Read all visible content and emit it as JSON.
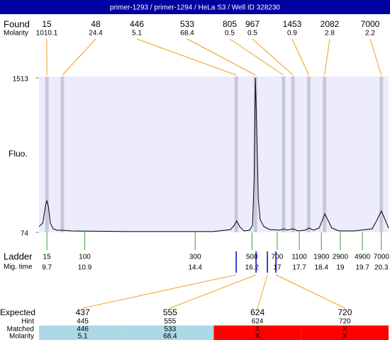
{
  "chart_data": {
    "type": "line",
    "title": "primer-1293 / primer-1294 / HeLa S3 / Well ID 328230",
    "ylabel": "Fluo.",
    "x": [
      9.45,
      9.57,
      9.66,
      9.7,
      9.75,
      9.81,
      9.9,
      10.01,
      10.19,
      10.46,
      12.26,
      14.96,
      15.52,
      15.64,
      15.72,
      15.81,
      15.95,
      16.13,
      16.22,
      16.27,
      16.31,
      16.36,
      16.4,
      16.46,
      16.58,
      16.76,
      17.09,
      17.21,
      17.31,
      17.5,
      17.66,
      17.88,
      18.01,
      18.15,
      18.33,
      18.44,
      18.51,
      18.6,
      18.73,
      18.96,
      19.45,
      20.01,
      20.17,
      20.3,
      20.42,
      20.53
    ],
    "values": [
      127,
      160,
      325,
      371,
      312,
      160,
      107,
      94,
      94,
      87,
      81,
      81,
      100,
      140,
      180,
      127,
      87,
      94,
      140,
      589,
      1513,
      919,
      391,
      193,
      127,
      100,
      94,
      107,
      94,
      107,
      87,
      94,
      114,
      94,
      114,
      193,
      246,
      193,
      114,
      87,
      87,
      107,
      193,
      272,
      193,
      114
    ],
    "color": "#000000",
    "xlim": [
      9.45,
      20.53
    ],
    "ylim": [
      74,
      1513
    ],
    "yticks": [
      74,
      1513
    ],
    "found": {
      "label": "Found",
      "sublabel": "Molarity",
      "peaks": [
        {
          "size": 15,
          "molarity": 1010.1,
          "time": 9.7
        },
        {
          "size": 48,
          "molarity": 24.4,
          "time": 10.19
        },
        {
          "size": 446,
          "molarity": 5.1,
          "time": 15.7
        },
        {
          "size": 533,
          "molarity": 68.4,
          "time": 16.31
        },
        {
          "size": 805,
          "molarity": 0.5,
          "time": 17.2
        },
        {
          "size": 967,
          "molarity": 0.5,
          "time": 17.5
        },
        {
          "size": 1453,
          "molarity": 0.9,
          "time": 18.0
        },
        {
          "size": 2082,
          "molarity": 2.8,
          "time": 18.5
        },
        {
          "size": 7000,
          "molarity": 2.2,
          "time": 20.3
        }
      ]
    },
    "ladder": {
      "label": "Ladder",
      "sublabel": "Mig. time",
      "sizes": [
        15,
        100,
        300,
        500,
        700,
        1100,
        1900,
        2900,
        4900,
        7000
      ],
      "times": [
        9.7,
        10.9,
        14.4,
        16.2,
        17,
        17.7,
        18.4,
        19,
        19.7,
        20.3
      ]
    },
    "expected": {
      "label": "Expected",
      "hint_label": "Hint",
      "matched_label": "Matched",
      "molarity_label": "Molarity",
      "columns": [
        {
          "expected": 437,
          "hint": 445,
          "matched": 446,
          "molarity": 5.1,
          "time": 15.7,
          "color": "#add8e6"
        },
        {
          "expected": 555,
          "hint": 555,
          "matched": 533,
          "molarity": 68.4,
          "time": 16.33,
          "color": "#add8e6"
        },
        {
          "expected": 624,
          "hint": 624,
          "matched": "X",
          "molarity": "X",
          "time": 16.69,
          "color": "#ff0000"
        },
        {
          "expected": 720,
          "hint": 720,
          "matched": "X",
          "molarity": "X",
          "time": 16.96,
          "color": "#ff0000"
        }
      ]
    }
  }
}
